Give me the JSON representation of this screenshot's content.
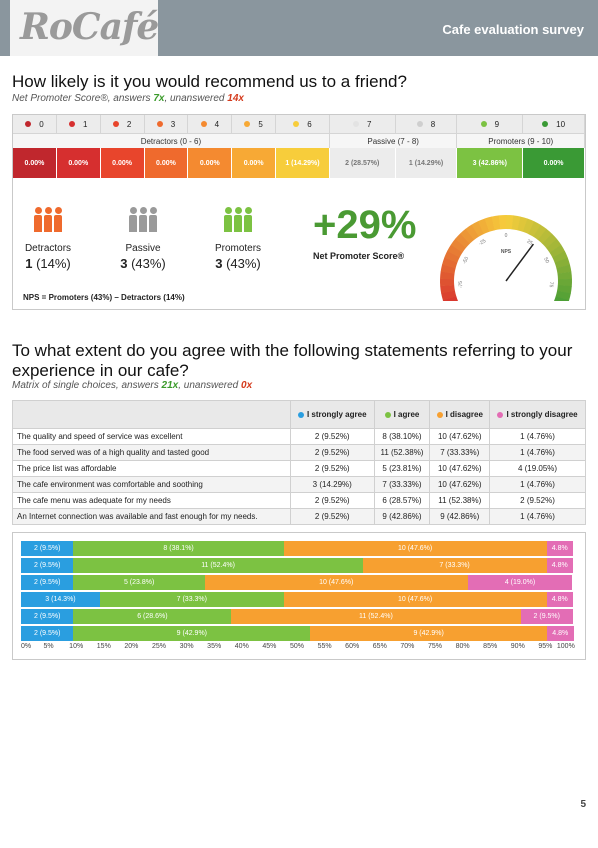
{
  "header": {
    "logo": "RoCafé",
    "title": "Cafe evaluation survey"
  },
  "q1": {
    "title": "How likely is it you would recommend us to a friend?",
    "sub_prefix": "Net Promoter Score®, answers ",
    "answers": "7x",
    "sub_mid": ", unanswered ",
    "unanswered": "14x",
    "scores": [
      {
        "label": "0",
        "color": "#c0272d"
      },
      {
        "label": "1",
        "color": "#d62f2f"
      },
      {
        "label": "2",
        "color": "#e8452c"
      },
      {
        "label": "3",
        "color": "#ef6a2d"
      },
      {
        "label": "4",
        "color": "#f48a30"
      },
      {
        "label": "5",
        "color": "#f7a935"
      },
      {
        "label": "6",
        "color": "#f7cd3b"
      },
      {
        "label": "7",
        "color": "#e3e3e3"
      },
      {
        "label": "8",
        "color": "#cfcfcf"
      },
      {
        "label": "9",
        "color": "#7cc242"
      },
      {
        "label": "10",
        "color": "#3a9a35"
      }
    ],
    "groups": [
      {
        "label": "Detractors (0 - 6)",
        "span": 7
      },
      {
        "label": "Passive (7 - 8)",
        "span": 2
      },
      {
        "label": "Promoters (9 - 10)",
        "span": 2
      }
    ],
    "percents": [
      "0.00%",
      "0.00%",
      "0.00%",
      "0.00%",
      "0.00%",
      "0.00%",
      "1 (14.29%)",
      "2 (28.57%)",
      "1 (14.29%)",
      "3 (42.86%)",
      "0.00%"
    ],
    "categories": [
      {
        "label": "Detractors",
        "count": "1",
        "pct": "(14%)",
        "color": "#ef6a2d"
      },
      {
        "label": "Passive",
        "count": "3",
        "pct": "(43%)",
        "color": "#9a9a9a"
      },
      {
        "label": "Promoters",
        "count": "3",
        "pct": "(43%)",
        "color": "#7cc242"
      }
    ],
    "nps_value": "+29%",
    "nps_caption": "Net Promoter Score®",
    "nps_formula": "NPS = Promoters (43%) – Detractors (14%)",
    "gauge": {
      "label": "NPS",
      "value": 29,
      "ticks": [
        "-100",
        "-75",
        "-50",
        "-25",
        "0",
        "25",
        "50",
        "75",
        "100"
      ]
    }
  },
  "q2": {
    "title_line1": "To what extent do you agree with the following statements referring to your",
    "title_line2": "experience in our cafe?",
    "sub_prefix": "Matrix of single choices, answers ",
    "answers": "21x",
    "sub_mid": ", unanswered ",
    "unanswered": "0x",
    "columns": [
      {
        "label": "I strongly agree",
        "color": "#2a9ee0"
      },
      {
        "label": "I agree",
        "color": "#7cc242"
      },
      {
        "label": "I disagree",
        "color": "#f7a030"
      },
      {
        "label": "I strongly disagree",
        "color": "#e36db5"
      }
    ],
    "rows": [
      {
        "statement": "The quality and speed of service was excellent",
        "cells": [
          "2 (9.52%)",
          "8 (38.10%)",
          "10 (47.62%)",
          "1 (4.76%)"
        ]
      },
      {
        "statement": "The food served was of a high quality and tasted good",
        "cells": [
          "2 (9.52%)",
          "11 (52.38%)",
          "7 (33.33%)",
          "1 (4.76%)"
        ]
      },
      {
        "statement": "The price list was affordable",
        "cells": [
          "2 (9.52%)",
          "5 (23.81%)",
          "10 (47.62%)",
          "4 (19.05%)"
        ]
      },
      {
        "statement": "The cafe environment was comfortable and soothing",
        "cells": [
          "3 (14.29%)",
          "7 (33.33%)",
          "10 (47.62%)",
          "1 (4.76%)"
        ]
      },
      {
        "statement": "The cafe menu was adequate for my needs",
        "cells": [
          "2 (9.52%)",
          "6 (28.57%)",
          "11 (52.38%)",
          "2 (9.52%)"
        ]
      },
      {
        "statement": "An Internet connection was available and fast enough for my needs.",
        "cells": [
          "2 (9.52%)",
          "9 (42.86%)",
          "9 (42.86%)",
          "1 (4.76%)"
        ]
      }
    ]
  },
  "chart_data": {
    "type": "bar",
    "orientation": "horizontal-stacked",
    "categories": [
      "The quality and speed of service was excellent",
      "The food served was of a high quality and tasted good",
      "The price list was affordable",
      "The cafe environment was comfortable and soothing",
      "The cafe menu was adequate for my needs",
      "An Internet connection was available and fast enough for my needs."
    ],
    "series": [
      {
        "name": "I strongly agree",
        "color": "#2a9ee0",
        "values": [
          9.5,
          9.5,
          9.5,
          14.3,
          9.5,
          9.5
        ],
        "labels": [
          "2 (9.5%)",
          "2 (9.5%)",
          "2 (9.5%)",
          "3 (14.3%)",
          "2 (9.5%)",
          "2 (9.5%)"
        ]
      },
      {
        "name": "I agree",
        "color": "#7cc242",
        "values": [
          38.1,
          52.4,
          23.8,
          33.3,
          28.6,
          42.9
        ],
        "labels": [
          "8 (38.1%)",
          "11 (52.4%)",
          "5 (23.8%)",
          "7 (33.3%)",
          "6 (28.6%)",
          "9 (42.9%)"
        ]
      },
      {
        "name": "I disagree",
        "color": "#f7a030",
        "values": [
          47.6,
          33.3,
          47.6,
          47.6,
          52.4,
          42.9
        ],
        "labels": [
          "10 (47.6%)",
          "7 (33.3%)",
          "10 (47.6%)",
          "10 (47.6%)",
          "11 (52.4%)",
          "9 (42.9%)"
        ]
      },
      {
        "name": "I strongly disagree",
        "color": "#e36db5",
        "values": [
          4.8,
          4.8,
          19.0,
          4.8,
          9.5,
          4.8
        ],
        "labels": [
          "4.8%",
          "4.8%",
          "4 (19.0%)",
          "4.8%",
          "2 (9.5%)",
          "4.8%"
        ]
      }
    ],
    "xlim": [
      0,
      100
    ],
    "xticks": [
      "0%",
      "5%",
      "10%",
      "15%",
      "20%",
      "25%",
      "30%",
      "35%",
      "40%",
      "45%",
      "50%",
      "55%",
      "60%",
      "65%",
      "70%",
      "75%",
      "80%",
      "85%",
      "90%",
      "95%",
      "100%"
    ]
  },
  "page_number": "5"
}
